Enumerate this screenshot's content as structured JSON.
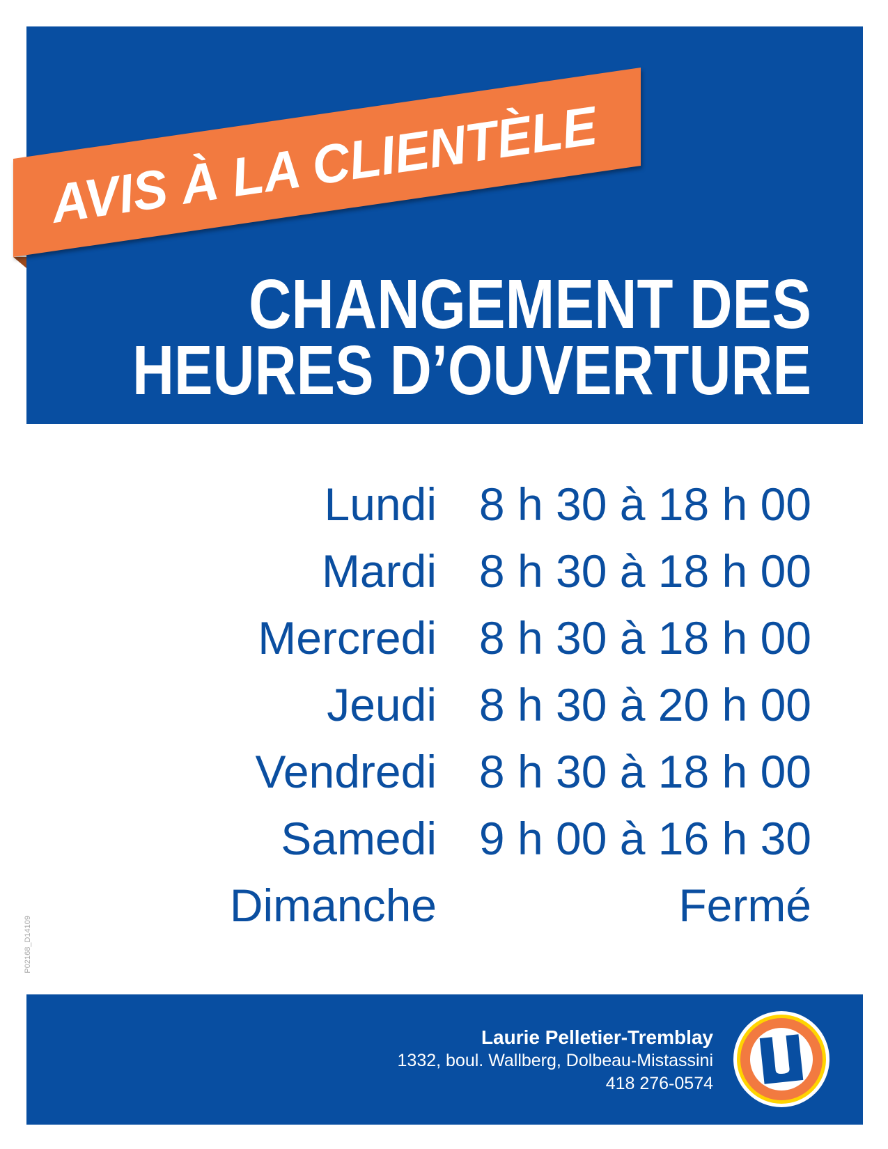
{
  "banner": "AVIS À LA CLIENTÈLE",
  "title": {
    "line1": "CHANGEMENT DES",
    "line2": "HEURES D’OUVERTURE"
  },
  "schedule": [
    {
      "day": "Lundi",
      "hours": "8 h 30 à 18 h 00"
    },
    {
      "day": "Mardi",
      "hours": "8 h 30 à 18 h 00"
    },
    {
      "day": "Mercredi",
      "hours": "8 h 30 à 18 h 00"
    },
    {
      "day": "Jeudi",
      "hours": "8 h 30 à 20 h 00"
    },
    {
      "day": "Vendredi",
      "hours": "8 h 30 à 18 h 00"
    },
    {
      "day": "Samedi",
      "hours": "9 h 00 à 16 h 30"
    },
    {
      "day": "Dimanche",
      "hours": "Fermé"
    }
  ],
  "footer": {
    "name": "Laurie Pelletier-Tremblay",
    "address": "1332, boul. Wallberg, Dolbeau-Mistassini",
    "phone": "418 276-0574",
    "logo_letter": "U"
  },
  "side_code": "P02168_D14109",
  "colors": {
    "brand_blue": "#084ea1",
    "banner_orange": "#f27a40",
    "logo_yellow": "#ffd400"
  }
}
